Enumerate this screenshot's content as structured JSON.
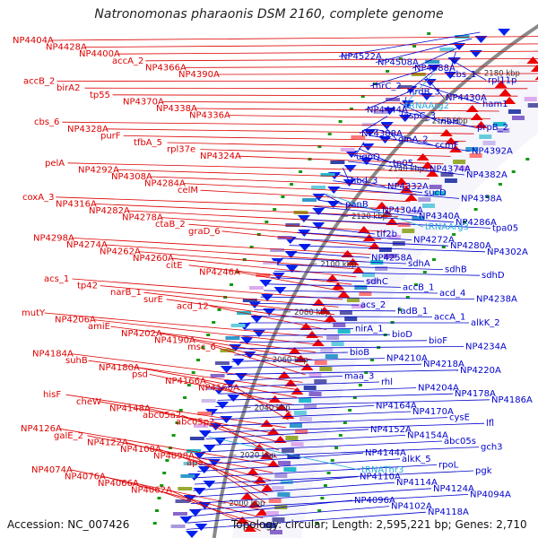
{
  "title": "Natronomonas pharaonis DSM 2160, complete genome",
  "footer": {
    "accession": "Accession: NC_007426",
    "topology": "Topology: circular; Length: 2,595,221 bp; Genes: 2,710"
  },
  "colors": {
    "left_labels": "#dd0000",
    "right_labels": "#0000cc",
    "trna_labels": "#22aadd",
    "backbone": "#8a8a8a",
    "forward_arrows": "#ee0000",
    "reverse_arrows": "#0022ee",
    "green_dashes": "#119911"
  },
  "ticks": [
    "2200 kbp",
    "2180 kbp",
    "2160 kbp",
    "2140 kbp",
    "2120 kbp",
    "2100 kbp",
    "2080 kbp",
    "2060 kbp",
    "2040 kbp",
    "2020 kbp",
    "2000 kbp"
  ],
  "left_labels": [
    "NP4404A",
    "NP4428A",
    "NP4400A",
    "accA_2",
    "NP4366A",
    "NP4390A",
    "accB_2",
    "birA2",
    "tp55",
    "NP4370A",
    "NP4338A",
    "NP4336A",
    "cbs_6",
    "NP4328A",
    "purF",
    "tfbA_5",
    "rpl37e",
    "NP4324A",
    "pelA",
    "NP4292A",
    "NP4308A",
    "NP4284A",
    "celM",
    "coxA_3",
    "NP4316A",
    "NP4282A",
    "NP4278A",
    "ctaB_2",
    "graD_6",
    "NP4298A",
    "NP4274A",
    "NP4262A",
    "NP4260A",
    "citE",
    "NP4246A",
    "acs_1",
    "tp42",
    "narB_1",
    "surE",
    "acd_12",
    "mutY",
    "NP4206A",
    "amiE",
    "NP4202A",
    "NP4190A",
    "msc_6",
    "NP4184A",
    "suhB",
    "NP4180A",
    "psd",
    "NP4166A",
    "NP4160A",
    "hisF",
    "cheW",
    "NP4148A",
    "abc05a2",
    "abc05p2",
    "NP4126A",
    "galE_2",
    "NP4122A",
    "NP4108A",
    "NP4098A",
    "apa",
    "NP4074A",
    "NP4076A",
    "NP4066A",
    "NP4062A"
  ],
  "right_labels": [
    "NP4522A",
    "NP4508A",
    "NP4488A",
    "cbs_1",
    "rpl11p",
    "thrC_2",
    "nrdB_3",
    "NP4430A",
    "ham1",
    "NP4444A",
    "aspC_3",
    "ribH",
    "prpB_2",
    "NP4388A",
    "glnA_2",
    "ccmF",
    "NP4392A",
    "ugpQ",
    "tp05",
    "NP4374A",
    "NP4382A",
    "hbd_3",
    "NP4332A",
    "sucD",
    "NP4358A",
    "panB",
    "NP4304A",
    "NP4340A",
    "NP4286A",
    "tpa05",
    "tif2b",
    "NP4272A",
    "NP4280A",
    "NP4302A",
    "NP4258A",
    "sdhA",
    "sdhB",
    "sdhD",
    "sdhC",
    "accB_1",
    "acd_4",
    "NP4238A",
    "acs_2",
    "fadB_1",
    "accA_1",
    "alkK_2",
    "nirA_1",
    "bioD",
    "bioF",
    "NP4234A",
    "bioB",
    "NP4210A",
    "NP4218A",
    "NP4220A",
    "maa_3",
    "rhl",
    "NP4204A",
    "NP4178A",
    "NP4186A",
    "NP4164A",
    "NP4170A",
    "cysE",
    "lfl",
    "NP4152A",
    "NP4154A",
    "abc05s",
    "gch3",
    "NP4144A",
    "alkK_5",
    "rpoL",
    "pgk",
    "NP4110A",
    "NP4114A",
    "NP4124A",
    "NP4094A",
    "NP4096A",
    "NP4102A",
    "NP4118A"
  ],
  "trna_labels": [
    "tRNAArg2",
    "tRNAArg3",
    "tRNAThr3"
  ]
}
